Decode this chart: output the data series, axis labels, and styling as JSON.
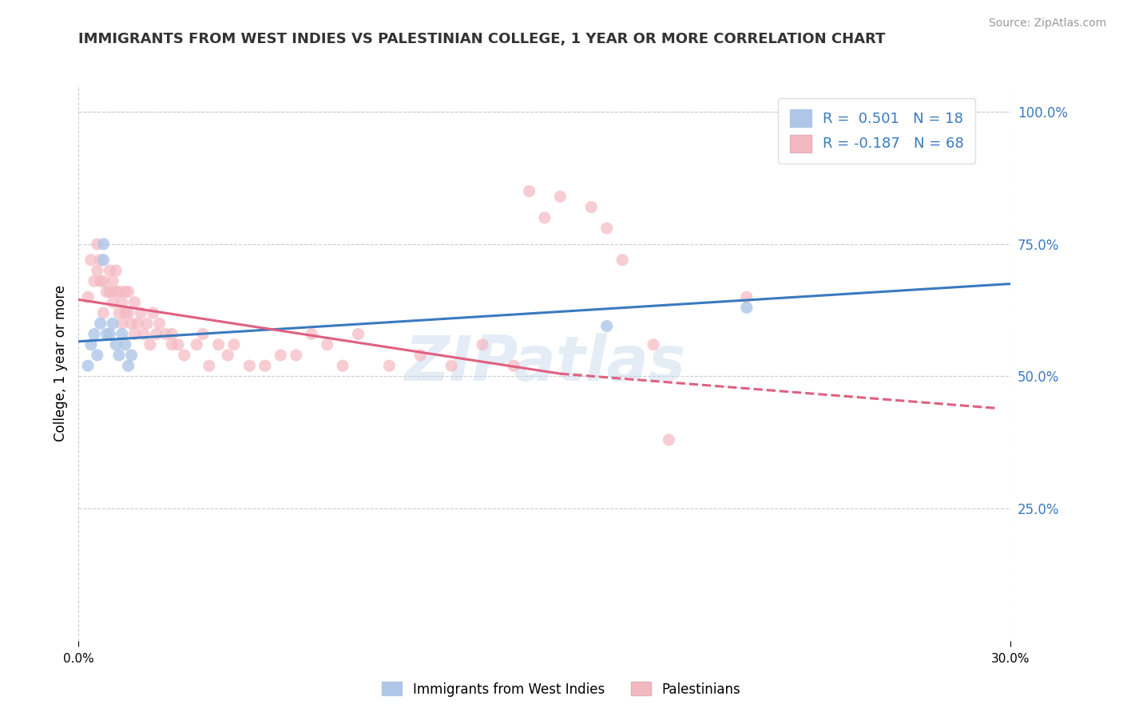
{
  "title": "IMMIGRANTS FROM WEST INDIES VS PALESTINIAN COLLEGE, 1 YEAR OR MORE CORRELATION CHART",
  "source_text": "Source: ZipAtlas.com",
  "ylabel": "College, 1 year or more",
  "xlim": [
    0.0,
    0.3
  ],
  "ylim": [
    0.0,
    1.05
  ],
  "y_tick_labels_right": [
    "100.0%",
    "75.0%",
    "50.0%",
    "25.0%"
  ],
  "y_tick_positions_right": [
    1.0,
    0.75,
    0.5,
    0.25
  ],
  "legend1_label": "R =  0.501   N = 18",
  "legend2_label": "R = -0.187   N = 68",
  "legend_color1": "#aec6e8",
  "legend_color2": "#f4b8c1",
  "scatter_color_blue": "#aec6e8",
  "scatter_color_pink": "#f4b8c1",
  "line_color_blue": "#3a7abf",
  "line_color_pink": "#e06080",
  "watermark": "ZIPatlas",
  "blue_scatter_x": [
    0.003,
    0.004,
    0.005,
    0.006,
    0.007,
    0.008,
    0.008,
    0.009,
    0.01,
    0.011,
    0.012,
    0.013,
    0.014,
    0.015,
    0.016,
    0.017,
    0.17,
    0.215
  ],
  "blue_scatter_y": [
    0.52,
    0.56,
    0.58,
    0.54,
    0.6,
    0.75,
    0.72,
    0.58,
    0.58,
    0.6,
    0.56,
    0.54,
    0.58,
    0.56,
    0.52,
    0.54,
    0.595,
    0.63
  ],
  "pink_scatter_x": [
    0.003,
    0.004,
    0.005,
    0.006,
    0.006,
    0.007,
    0.007,
    0.008,
    0.008,
    0.009,
    0.01,
    0.01,
    0.011,
    0.011,
    0.012,
    0.012,
    0.013,
    0.013,
    0.014,
    0.014,
    0.015,
    0.015,
    0.016,
    0.016,
    0.017,
    0.018,
    0.018,
    0.019,
    0.02,
    0.021,
    0.022,
    0.023,
    0.024,
    0.025,
    0.026,
    0.028,
    0.03,
    0.03,
    0.032,
    0.034,
    0.038,
    0.04,
    0.042,
    0.045,
    0.048,
    0.05,
    0.055,
    0.06,
    0.065,
    0.07,
    0.075,
    0.08,
    0.085,
    0.09,
    0.1,
    0.11,
    0.12,
    0.13,
    0.14,
    0.145,
    0.15,
    0.155,
    0.165,
    0.17,
    0.175,
    0.185,
    0.19,
    0.215
  ],
  "pink_scatter_y": [
    0.65,
    0.72,
    0.68,
    0.7,
    0.75,
    0.68,
    0.72,
    0.68,
    0.62,
    0.66,
    0.66,
    0.7,
    0.68,
    0.64,
    0.66,
    0.7,
    0.62,
    0.66,
    0.64,
    0.6,
    0.62,
    0.66,
    0.62,
    0.66,
    0.6,
    0.64,
    0.58,
    0.6,
    0.62,
    0.58,
    0.6,
    0.56,
    0.62,
    0.58,
    0.6,
    0.58,
    0.58,
    0.56,
    0.56,
    0.54,
    0.56,
    0.58,
    0.52,
    0.56,
    0.54,
    0.56,
    0.52,
    0.52,
    0.54,
    0.54,
    0.58,
    0.56,
    0.52,
    0.58,
    0.52,
    0.54,
    0.52,
    0.56,
    0.52,
    0.85,
    0.8,
    0.84,
    0.82,
    0.78,
    0.72,
    0.56,
    0.38,
    0.65
  ],
  "blue_line_x": [
    0.0,
    0.3
  ],
  "blue_line_y": [
    0.566,
    0.675
  ],
  "pink_solid_line_x": [
    0.0,
    0.155
  ],
  "pink_solid_line_y": [
    0.645,
    0.505
  ],
  "pink_dashed_line_x": [
    0.155,
    0.295
  ],
  "pink_dashed_line_y": [
    0.505,
    0.44
  ],
  "legend_bottom_labels": [
    "Immigrants from West Indies",
    "Palestinians"
  ],
  "background_color": "#ffffff",
  "grid_color": "#cccccc"
}
